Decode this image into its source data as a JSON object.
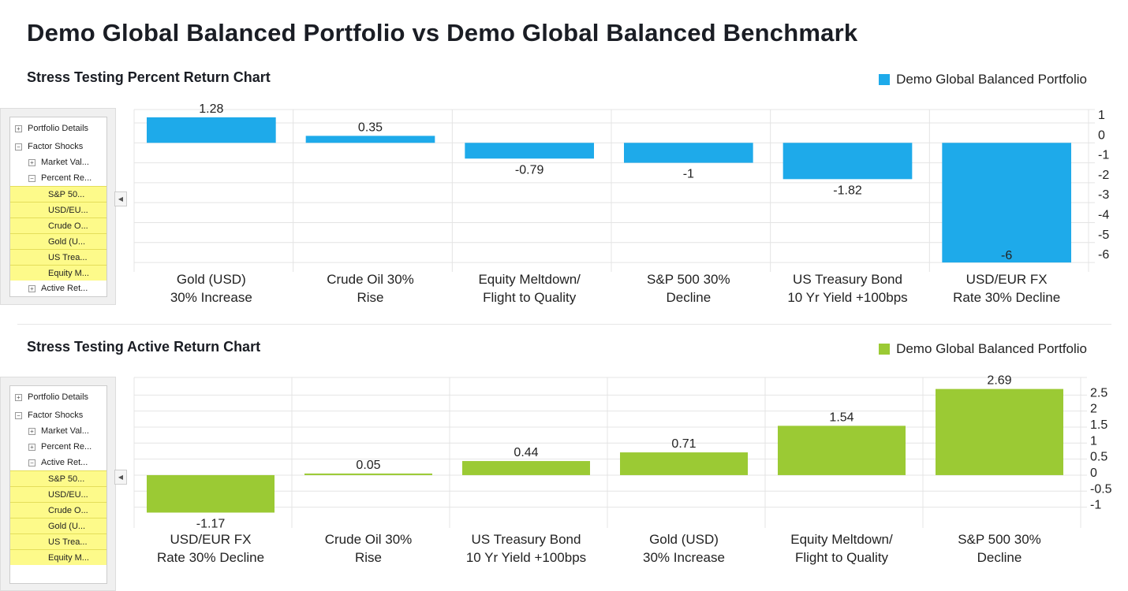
{
  "title": "Demo Global Balanced Portfolio vs Demo Global Balanced Benchmark",
  "colors": {
    "percent": "#1eaaea",
    "active": "#9bca34"
  },
  "tree_top": {
    "items": [
      {
        "label": "Portfolio Details",
        "sign": "+",
        "level": 0
      },
      {
        "label": "Factor Shocks",
        "sign": "−",
        "level": 0
      },
      {
        "label": "Market Val...",
        "sign": "+",
        "level": 1
      },
      {
        "label": "Percent Re...",
        "sign": "−",
        "level": 1
      },
      {
        "label": "S&P 50...",
        "sel": true
      },
      {
        "label": "USD/EU...",
        "sel": true
      },
      {
        "label": "Crude O...",
        "sel": true
      },
      {
        "label": "Gold (U...",
        "sel": true
      },
      {
        "label": "US Trea...",
        "sel": true
      },
      {
        "label": "Equity M...",
        "sel": true
      },
      {
        "label": "Active Ret...",
        "sign": "+",
        "level": 1
      }
    ]
  },
  "tree_bottom": {
    "items": [
      {
        "label": "Portfolio Details",
        "sign": "+",
        "level": 0
      },
      {
        "label": "Factor Shocks",
        "sign": "−",
        "level": 0
      },
      {
        "label": "Market Val...",
        "sign": "+",
        "level": 1
      },
      {
        "label": "Percent Re...",
        "sign": "+",
        "level": 1
      },
      {
        "label": "Active Ret...",
        "sign": "−",
        "level": 1
      },
      {
        "label": "S&P 50...",
        "sel": true
      },
      {
        "label": "USD/EU...",
        "sel": true
      },
      {
        "label": "Crude O...",
        "sel": true
      },
      {
        "label": "Gold (U...",
        "sel": true
      },
      {
        "label": "US Trea...",
        "sel": true
      },
      {
        "label": "Equity M...",
        "sel": true
      }
    ]
  },
  "collapse_icon": "triangle-left",
  "chart_data": [
    {
      "type": "bar",
      "title": "Stress Testing Percent Return Chart",
      "legend": "Demo Global Balanced Portfolio",
      "legend_position": "top-right",
      "categories": [
        [
          "Gold (USD)",
          "30% Increase"
        ],
        [
          "Crude Oil 30%",
          "Rise"
        ],
        [
          "Equity Meltdown/",
          "Flight to Quality"
        ],
        [
          "S&P 500 30%",
          "Decline"
        ],
        [
          "US Treasury Bond",
          "10 Yr Yield +100bps"
        ],
        [
          "USD/EUR FX",
          "Rate 30% Decline"
        ]
      ],
      "values": [
        1.28,
        0.35,
        -0.79,
        -1,
        -1.82,
        -6
      ],
      "value_labels": [
        "1.28",
        "0.35",
        "-0.79",
        "-1",
        "-1.82",
        "-6"
      ],
      "yticks": [
        "1",
        "0",
        "-1",
        "-2",
        "-3",
        "-4",
        "-5",
        "-6"
      ],
      "ytick_values": [
        1,
        0,
        -1,
        -2,
        -3,
        -4,
        -5,
        -6
      ],
      "ylim": [
        -6.47,
        1.67
      ],
      "grid": true,
      "y_axis_side": "right"
    },
    {
      "type": "bar",
      "title": "Stress Testing Active Return Chart",
      "legend": "Demo Global Balanced Portfolio",
      "legend_position": "top-right",
      "categories": [
        [
          "USD/EUR FX",
          "Rate 30% Decline"
        ],
        [
          "Crude Oil 30%",
          "Rise"
        ],
        [
          "US Treasury Bond",
          "10 Yr Yield +100bps"
        ],
        [
          "Gold (USD)",
          "30% Increase"
        ],
        [
          "Equity Meltdown/",
          "Flight to Quality"
        ],
        [
          "S&P 500 30%",
          "Decline"
        ]
      ],
      "values": [
        -1.17,
        0.05,
        0.44,
        0.71,
        1.54,
        2.69
      ],
      "value_labels": [
        "-1.17",
        "0.05",
        "0.44",
        "0.71",
        "1.54",
        "2.69"
      ],
      "yticks": [
        "2.5",
        "2",
        "1.5",
        "1",
        "0.5",
        "0",
        "-0.5",
        "-1"
      ],
      "ytick_values": [
        2.5,
        2,
        1.5,
        1,
        0.5,
        0,
        -0.5,
        -1
      ],
      "ylim": [
        -1.65,
        3.05
      ],
      "grid": true,
      "y_axis_side": "right"
    }
  ]
}
